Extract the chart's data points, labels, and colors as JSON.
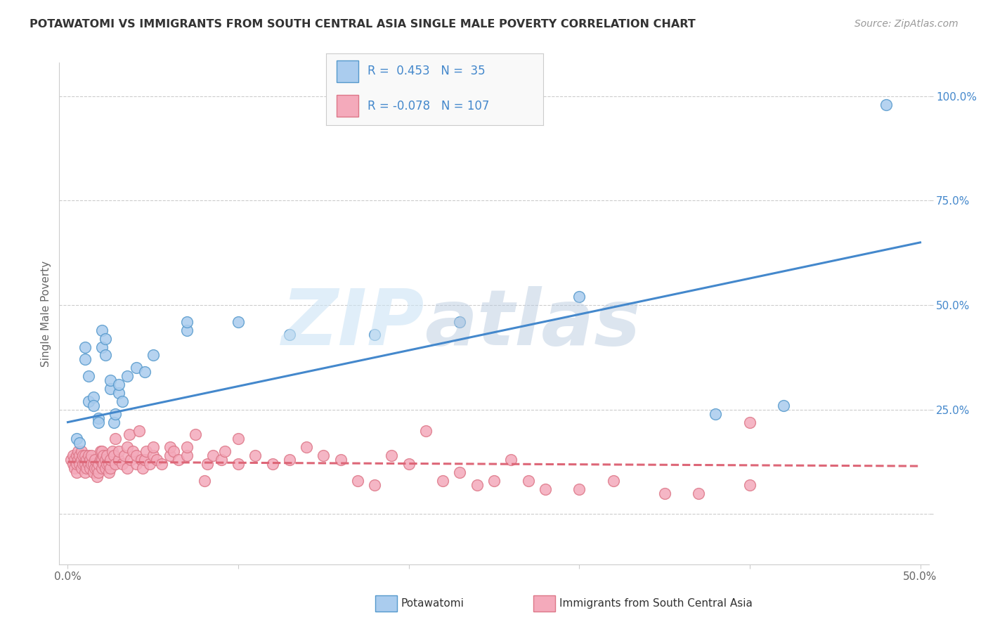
{
  "title": "POTAWATOMI VS IMMIGRANTS FROM SOUTH CENTRAL ASIA SINGLE MALE POVERTY CORRELATION CHART",
  "source": "Source: ZipAtlas.com",
  "ylabel": "Single Male Poverty",
  "xlabel": "",
  "xlim": [
    -0.005,
    0.505
  ],
  "ylim": [
    -0.12,
    1.08
  ],
  "yticks": [
    0.0,
    0.25,
    0.5,
    0.75,
    1.0
  ],
  "ytick_labels": [
    "",
    "25.0%",
    "50.0%",
    "75.0%",
    "100.0%"
  ],
  "xticks": [
    0.0,
    0.1,
    0.2,
    0.3,
    0.4,
    0.5
  ],
  "xtick_labels": [
    "0.0%",
    "",
    "",
    "",
    "",
    "50.0%"
  ],
  "blue_color": "#aaccee",
  "pink_color": "#f4aabb",
  "blue_edge_color": "#5599cc",
  "pink_edge_color": "#dd7788",
  "blue_line_color": "#4488cc",
  "pink_line_color": "#dd6677",
  "text_color": "#4488cc",
  "title_color": "#333333",
  "source_color": "#999999",
  "watermark_color1": "#cce4f5",
  "watermark_color2": "#bbcce0",
  "background_color": "#ffffff",
  "grid_color": "#cccccc",
  "blue_scatter": [
    [
      0.005,
      0.18
    ],
    [
      0.007,
      0.17
    ],
    [
      0.01,
      0.37
    ],
    [
      0.01,
      0.4
    ],
    [
      0.012,
      0.27
    ],
    [
      0.012,
      0.33
    ],
    [
      0.015,
      0.28
    ],
    [
      0.015,
      0.26
    ],
    [
      0.018,
      0.23
    ],
    [
      0.018,
      0.22
    ],
    [
      0.02,
      0.4
    ],
    [
      0.02,
      0.44
    ],
    [
      0.022,
      0.38
    ],
    [
      0.022,
      0.42
    ],
    [
      0.025,
      0.3
    ],
    [
      0.025,
      0.32
    ],
    [
      0.027,
      0.22
    ],
    [
      0.028,
      0.24
    ],
    [
      0.03,
      0.29
    ],
    [
      0.03,
      0.31
    ],
    [
      0.032,
      0.27
    ],
    [
      0.035,
      0.33
    ],
    [
      0.04,
      0.35
    ],
    [
      0.045,
      0.34
    ],
    [
      0.05,
      0.38
    ],
    [
      0.07,
      0.44
    ],
    [
      0.07,
      0.46
    ],
    [
      0.1,
      0.46
    ],
    [
      0.13,
      0.43
    ],
    [
      0.18,
      0.43
    ],
    [
      0.23,
      0.46
    ],
    [
      0.3,
      0.52
    ],
    [
      0.38,
      0.24
    ],
    [
      0.42,
      0.26
    ],
    [
      0.48,
      0.98
    ]
  ],
  "pink_scatter": [
    [
      0.002,
      0.13
    ],
    [
      0.003,
      0.12
    ],
    [
      0.003,
      0.14
    ],
    [
      0.004,
      0.11
    ],
    [
      0.004,
      0.13
    ],
    [
      0.005,
      0.1
    ],
    [
      0.005,
      0.12
    ],
    [
      0.005,
      0.14
    ],
    [
      0.006,
      0.13
    ],
    [
      0.006,
      0.15
    ],
    [
      0.007,
      0.12
    ],
    [
      0.007,
      0.14
    ],
    [
      0.008,
      0.11
    ],
    [
      0.008,
      0.13
    ],
    [
      0.008,
      0.15
    ],
    [
      0.009,
      0.12
    ],
    [
      0.009,
      0.14
    ],
    [
      0.01,
      0.1
    ],
    [
      0.01,
      0.12
    ],
    [
      0.01,
      0.14
    ],
    [
      0.011,
      0.11
    ],
    [
      0.011,
      0.13
    ],
    [
      0.012,
      0.12
    ],
    [
      0.012,
      0.14
    ],
    [
      0.013,
      0.11
    ],
    [
      0.013,
      0.13
    ],
    [
      0.014,
      0.12
    ],
    [
      0.014,
      0.14
    ],
    [
      0.015,
      0.1
    ],
    [
      0.015,
      0.12
    ],
    [
      0.016,
      0.11
    ],
    [
      0.016,
      0.13
    ],
    [
      0.017,
      0.09
    ],
    [
      0.017,
      0.11
    ],
    [
      0.018,
      0.1
    ],
    [
      0.018,
      0.12
    ],
    [
      0.019,
      0.13
    ],
    [
      0.019,
      0.15
    ],
    [
      0.02,
      0.11
    ],
    [
      0.02,
      0.13
    ],
    [
      0.02,
      0.15
    ],
    [
      0.021,
      0.12
    ],
    [
      0.021,
      0.14
    ],
    [
      0.022,
      0.11
    ],
    [
      0.022,
      0.13
    ],
    [
      0.023,
      0.12
    ],
    [
      0.023,
      0.14
    ],
    [
      0.024,
      0.1
    ],
    [
      0.024,
      0.12
    ],
    [
      0.025,
      0.11
    ],
    [
      0.025,
      0.13
    ],
    [
      0.026,
      0.15
    ],
    [
      0.027,
      0.14
    ],
    [
      0.028,
      0.12
    ],
    [
      0.028,
      0.18
    ],
    [
      0.03,
      0.13
    ],
    [
      0.03,
      0.15
    ],
    [
      0.032,
      0.12
    ],
    [
      0.033,
      0.14
    ],
    [
      0.035,
      0.11
    ],
    [
      0.035,
      0.16
    ],
    [
      0.036,
      0.19
    ],
    [
      0.037,
      0.13
    ],
    [
      0.038,
      0.15
    ],
    [
      0.04,
      0.12
    ],
    [
      0.04,
      0.14
    ],
    [
      0.042,
      0.2
    ],
    [
      0.043,
      0.13
    ],
    [
      0.044,
      0.11
    ],
    [
      0.045,
      0.13
    ],
    [
      0.046,
      0.15
    ],
    [
      0.048,
      0.12
    ],
    [
      0.05,
      0.14
    ],
    [
      0.05,
      0.16
    ],
    [
      0.052,
      0.13
    ],
    [
      0.055,
      0.12
    ],
    [
      0.06,
      0.14
    ],
    [
      0.06,
      0.16
    ],
    [
      0.062,
      0.15
    ],
    [
      0.065,
      0.13
    ],
    [
      0.07,
      0.14
    ],
    [
      0.07,
      0.16
    ],
    [
      0.075,
      0.19
    ],
    [
      0.08,
      0.08
    ],
    [
      0.082,
      0.12
    ],
    [
      0.085,
      0.14
    ],
    [
      0.09,
      0.13
    ],
    [
      0.092,
      0.15
    ],
    [
      0.1,
      0.12
    ],
    [
      0.1,
      0.18
    ],
    [
      0.11,
      0.14
    ],
    [
      0.12,
      0.12
    ],
    [
      0.13,
      0.13
    ],
    [
      0.14,
      0.16
    ],
    [
      0.15,
      0.14
    ],
    [
      0.16,
      0.13
    ],
    [
      0.17,
      0.08
    ],
    [
      0.18,
      0.07
    ],
    [
      0.19,
      0.14
    ],
    [
      0.2,
      0.12
    ],
    [
      0.21,
      0.2
    ],
    [
      0.22,
      0.08
    ],
    [
      0.23,
      0.1
    ],
    [
      0.24,
      0.07
    ],
    [
      0.25,
      0.08
    ],
    [
      0.26,
      0.13
    ],
    [
      0.27,
      0.08
    ],
    [
      0.28,
      0.06
    ],
    [
      0.3,
      0.06
    ],
    [
      0.32,
      0.08
    ],
    [
      0.35,
      0.05
    ],
    [
      0.37,
      0.05
    ],
    [
      0.4,
      0.22
    ],
    [
      0.4,
      0.07
    ]
  ],
  "blue_trendline": [
    [
      0.0,
      0.22
    ],
    [
      0.5,
      0.65
    ]
  ],
  "pink_trendline": [
    [
      0.0,
      0.125
    ],
    [
      0.5,
      0.115
    ]
  ]
}
